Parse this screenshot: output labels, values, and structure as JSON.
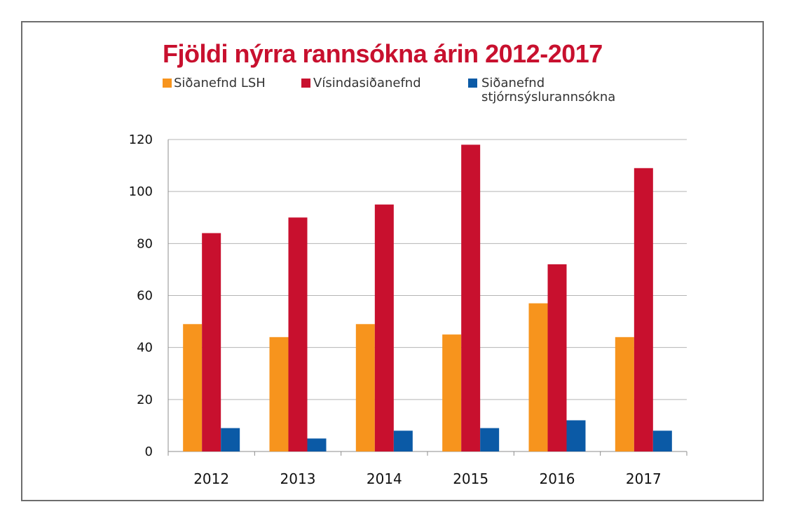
{
  "chart_data": {
    "type": "bar",
    "title": "Fjöldi nýrra rannsókna árin 2012-2017",
    "xlabel": "",
    "ylabel": "",
    "categories": [
      "2012",
      "2013",
      "2014",
      "2015",
      "2016",
      "2017"
    ],
    "series": [
      {
        "name": "Siðanefnd LSH",
        "color": "#f7941d",
        "values": [
          49,
          44,
          49,
          45,
          57,
          44
        ]
      },
      {
        "name": "Vísindasiðanefnd",
        "color": "#c8102e",
        "values": [
          84,
          90,
          95,
          118,
          72,
          109
        ]
      },
      {
        "name_lines": [
          "Siðanefnd",
          "stjórnsýslurannsókna"
        ],
        "color": "#0b5aa6",
        "values": [
          9,
          5,
          8,
          9,
          12,
          8
        ]
      }
    ],
    "ylim": [
      0,
      120
    ],
    "yticks": [
      0,
      20,
      40,
      60,
      80,
      100,
      120
    ],
    "grid": true,
    "legend_position": "top-left",
    "title_color": "#c8102e"
  }
}
